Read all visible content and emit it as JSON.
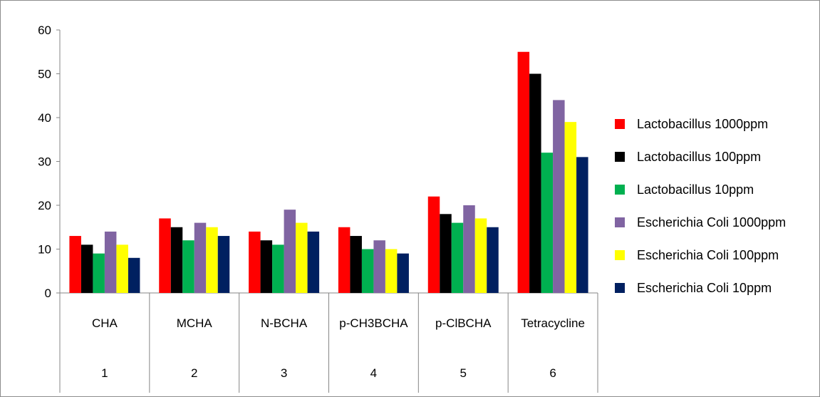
{
  "chart_data": {
    "type": "bar",
    "categories": [
      "CHA",
      "MCHA",
      "N-BCHA",
      "p-CH3BCHA",
      "p-ClBCHA",
      "Tetracycline"
    ],
    "category_numbers": [
      "1",
      "2",
      "3",
      "4",
      "5",
      "6"
    ],
    "ylim": [
      0,
      60
    ],
    "yticks": [
      0,
      10,
      20,
      30,
      40,
      50,
      60
    ],
    "grid": false,
    "legend_position": "right",
    "series": [
      {
        "name": "Lactobacillus 1000ppm",
        "color": "#ff0000",
        "values": [
          13,
          17,
          14,
          15,
          22,
          55
        ]
      },
      {
        "name": "Lactobacillus 100ppm",
        "color": "#000000",
        "values": [
          11,
          15,
          12,
          13,
          18,
          50
        ]
      },
      {
        "name": "Lactobacillus 10ppm",
        "color": "#00b050",
        "values": [
          9,
          12,
          11,
          10,
          16,
          32
        ]
      },
      {
        "name": "Escherichia Coli 1000ppm",
        "color": "#8064a2",
        "values": [
          14,
          16,
          19,
          12,
          20,
          44
        ]
      },
      {
        "name": "Escherichia Coli 100ppm",
        "color": "#ffff00",
        "values": [
          11,
          15,
          16,
          10,
          17,
          39
        ]
      },
      {
        "name": "Escherichia Coli 10ppm",
        "color": "#002060",
        "values": [
          8,
          13,
          14,
          9,
          15,
          31
        ]
      }
    ]
  }
}
